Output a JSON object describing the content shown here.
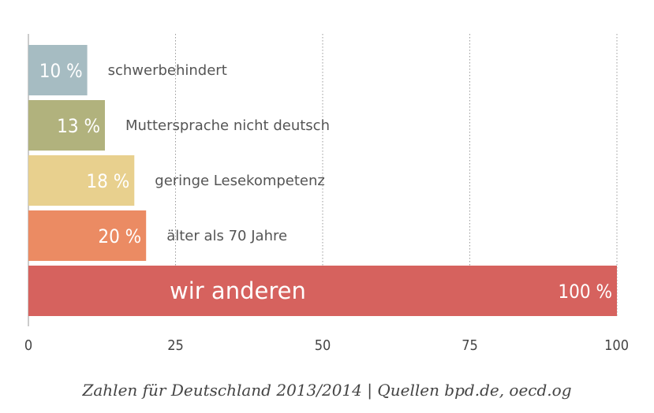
{
  "chart_data": {
    "type": "bar",
    "orientation": "horizontal",
    "xlim": [
      0,
      100
    ],
    "x_ticks": [
      0,
      25,
      50,
      75,
      100
    ],
    "grid": "vertical dotted",
    "bars": [
      {
        "value": 10,
        "value_label": "10 %",
        "label": "schwerbehindert",
        "color": "#a6bcc2"
      },
      {
        "value": 13,
        "value_label": "13 %",
        "label": "Muttersprache nicht deutsch",
        "color": "#b1b27d"
      },
      {
        "value": 18,
        "value_label": "18 %",
        "label": "geringe Lesekompetenz",
        "color": "#e8d08e"
      },
      {
        "value": 20,
        "value_label": "20 %",
        "label": "älter als 70 Jahre",
        "color": "#eb8b63"
      },
      {
        "value": 100,
        "value_label": "100 %",
        "label": "wir anderen",
        "color": "#d6625e"
      }
    ]
  },
  "caption": "Zahlen für Deutschland 2013/2014 | Quellen bpd.de, oecd.og"
}
